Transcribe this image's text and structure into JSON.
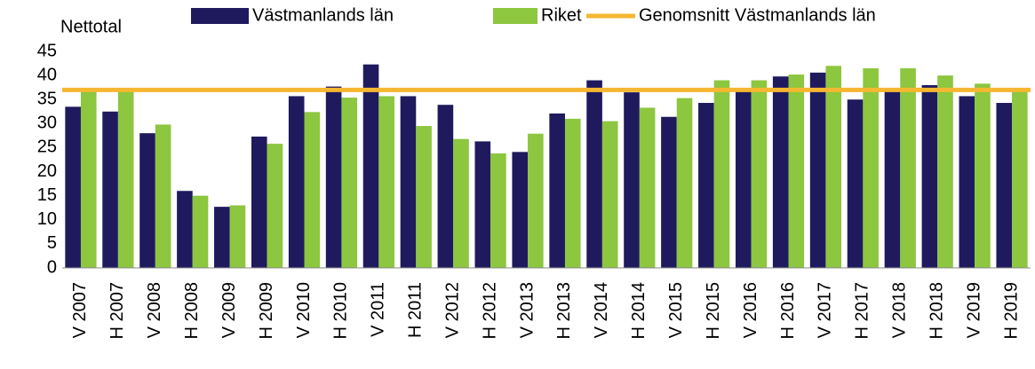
{
  "chart_data": {
    "type": "bar",
    "y_axis_label": "Nettotal",
    "categories": [
      "V 2007",
      "H 2007",
      "V 2008",
      "H 2008",
      "V 2009",
      "H 2009",
      "V 2010",
      "H 2010",
      "V 2011",
      "H 2011",
      "V 2012",
      "H 2012",
      "V 2013",
      "H 2013",
      "V 2014",
      "H 2014",
      "V 2015",
      "H 2015",
      "V 2016",
      "H 2016",
      "V 2017",
      "H 2017",
      "V 2018",
      "H 2018",
      "V 2019",
      "H 2019"
    ],
    "series": [
      {
        "name": "Västmanlands län",
        "color": "#1f1a5e",
        "values": [
          33.5,
          32.5,
          28,
          16,
          12.7,
          27.3,
          35.7,
          37.7,
          42.3,
          35.7,
          33.9,
          26.3,
          24.1,
          32.1,
          39,
          36.5,
          31.4,
          34.3,
          36.8,
          39.8,
          40.6,
          35,
          37,
          38,
          35.7,
          34.3
        ]
      },
      {
        "name": "Riket",
        "color": "#8dc63f",
        "values": [
          36.8,
          37,
          29.8,
          15,
          13,
          25.8,
          32.4,
          35.4,
          35.7,
          29.5,
          26.8,
          23.8,
          27.9,
          31,
          30.5,
          33.3,
          35.3,
          39,
          39,
          40.2,
          42,
          41.5,
          41.5,
          40,
          38.3,
          37.3
        ]
      }
    ],
    "average": {
      "name": "Genomsnitt Västmanlands län",
      "color": "#f5b731",
      "value": 37
    },
    "ylim": [
      0,
      45
    ],
    "yticks": [
      0,
      5,
      10,
      15,
      20,
      25,
      30,
      35,
      40,
      45
    ],
    "grid": false
  }
}
